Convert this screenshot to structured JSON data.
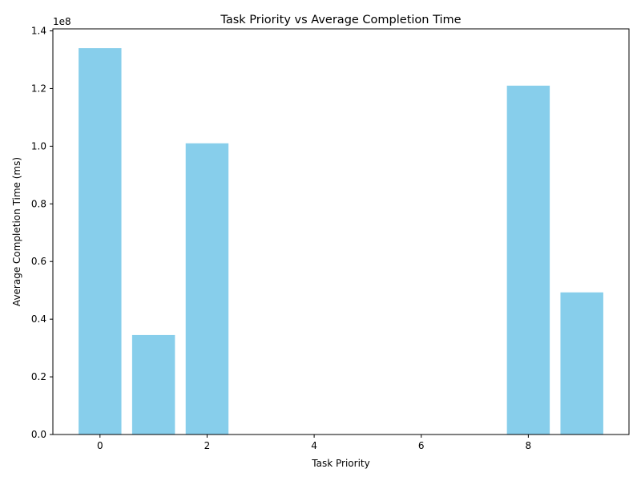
{
  "chart_data": {
    "type": "bar",
    "title": "Task Priority vs Average Completion Time",
    "xlabel": "Task Priority",
    "ylabel": "Average Completion Time (ms)",
    "y_scale_label": "1e8",
    "x": [
      0,
      1,
      2,
      8,
      9
    ],
    "values": [
      134000000,
      34500000,
      101000000,
      121000000,
      49300000
    ],
    "bar_width": 0.8,
    "xlim": [
      -0.88,
      9.88
    ],
    "ylim": [
      0,
      140700000
    ],
    "x_ticks": [
      0,
      2,
      4,
      6,
      8
    ],
    "x_tick_labels": [
      "0",
      "2",
      "4",
      "6",
      "8"
    ],
    "y_ticks": [
      0,
      20000000,
      40000000,
      60000000,
      80000000,
      100000000,
      120000000,
      140000000
    ],
    "y_tick_labels": [
      "0.0",
      "0.2",
      "0.4",
      "0.6",
      "0.8",
      "1.0",
      "1.2",
      "1.4"
    ],
    "bar_color": "#87CEEB",
    "grid": false,
    "legend": "none"
  }
}
